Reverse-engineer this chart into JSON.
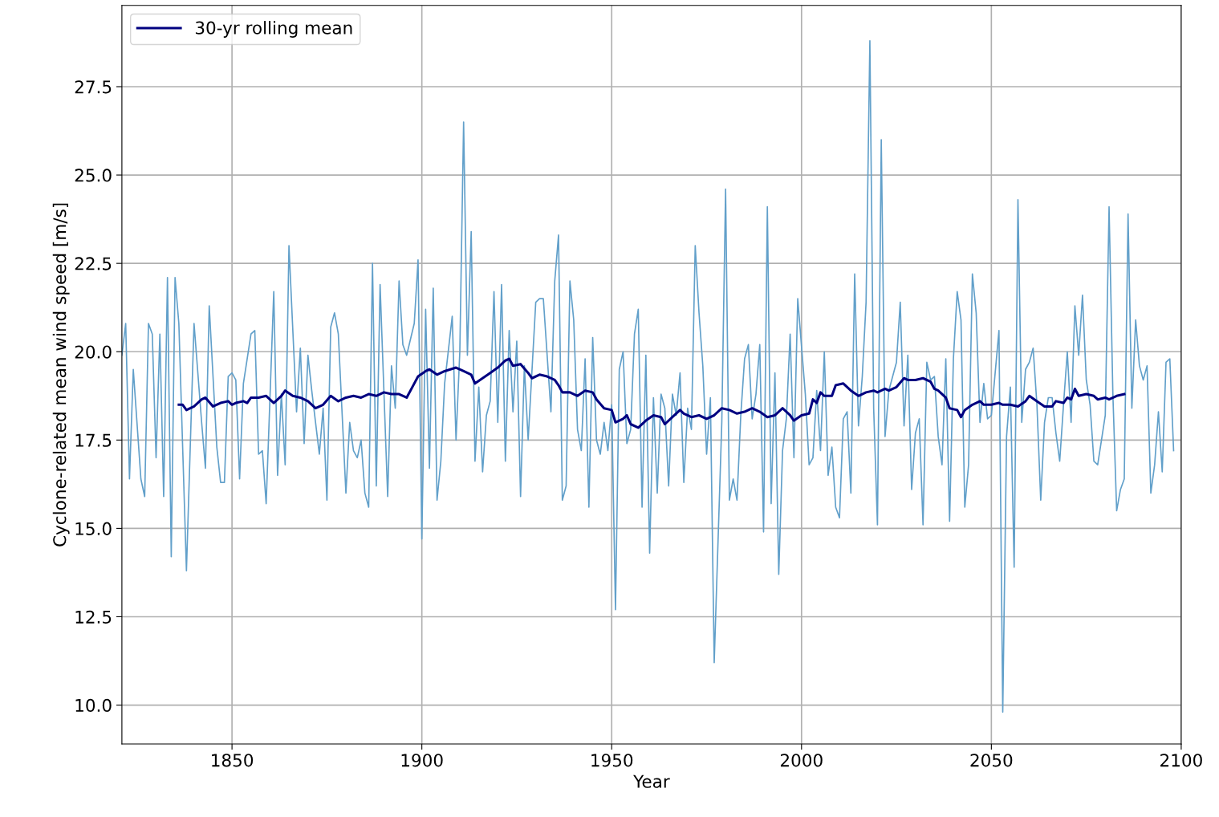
{
  "chart_data": {
    "type": "line",
    "xlabel": "Year",
    "ylabel": "Cyclone-related mean wind speed [m/s]",
    "xlim": [
      1821,
      2100
    ],
    "xticks": [
      1850,
      1900,
      1950,
      2000,
      2050,
      2100
    ],
    "ylim": [
      8.9,
      29.8
    ],
    "yticks": [
      {
        "value": 10,
        "label": "10.0"
      },
      {
        "value": 12.5,
        "label": "12.5"
      },
      {
        "value": 15,
        "label": "15.0"
      },
      {
        "value": 17.5,
        "label": "17.5"
      },
      {
        "value": 20,
        "label": "20.0"
      },
      {
        "value": 22.5,
        "label": "22.5"
      },
      {
        "value": 25,
        "label": "25.0"
      },
      {
        "value": 27.5,
        "label": "27.5"
      }
    ],
    "grid": true,
    "legend": "top left",
    "series": [
      {
        "color": "#62a0ca",
        "x": [
          1821,
          1822,
          1823,
          1824,
          1826,
          1827,
          1828,
          1829,
          1830,
          1831,
          1832,
          1833,
          1834,
          1835,
          1836,
          1838,
          1840,
          1842,
          1843,
          1844,
          1846,
          1847,
          1848,
          1849,
          1850,
          1851,
          1852,
          1853,
          1855,
          1856,
          1857,
          1858,
          1859,
          1861,
          1862,
          1863,
          1864,
          1865,
          1867,
          1868,
          1869,
          1870,
          1871,
          1873,
          1874,
          1875,
          1876,
          1877,
          1878,
          1880,
          1881,
          1882,
          1883,
          1884,
          1885,
          1886,
          1887,
          1888,
          1889,
          1891,
          1892,
          1893,
          1894,
          1895,
          1896,
          1898,
          1899,
          1900,
          1901,
          1902,
          1903,
          1904,
          1905,
          1906,
          1908,
          1909,
          1910,
          1911,
          1912,
          1913,
          1914,
          1915,
          1916,
          1917,
          1918,
          1919,
          1920,
          1921,
          1922,
          1923,
          1924,
          1925,
          1926,
          1927,
          1928,
          1930,
          1931,
          1932,
          1934,
          1935,
          1936,
          1937,
          1938,
          1939,
          1940,
          1941,
          1942,
          1943,
          1944,
          1945,
          1946,
          1947,
          1948,
          1949,
          1950,
          1951,
          1952,
          1953,
          1954,
          1955,
          1956,
          1957,
          1958,
          1959,
          1960,
          1961,
          1962,
          1963,
          1964,
          1965,
          1966,
          1967,
          1968,
          1969,
          1970,
          1971,
          1972,
          1973,
          1974,
          1975,
          1976,
          1977,
          1979,
          1980,
          1981,
          1982,
          1983,
          1984,
          1985,
          1986,
          1987,
          1988,
          1989,
          1990,
          1991,
          1992,
          1993,
          1994,
          1995,
          1996,
          1997,
          1998,
          1999,
          2001,
          2002,
          2003,
          2004,
          2005,
          2006,
          2007,
          2008,
          2009,
          2010,
          2011,
          2012,
          2013,
          2014,
          2015,
          2016,
          2017,
          2018,
          2019,
          2020,
          2021,
          2022,
          2023,
          2024,
          2025,
          2026,
          2027,
          2028,
          2029,
          2030,
          2031,
          2032,
          2033,
          2034,
          2035,
          2036,
          2037,
          2038,
          2039,
          2040,
          2041,
          2042,
          2043,
          2044,
          2045,
          2046,
          2047,
          2048,
          2049,
          2050,
          2051,
          2052,
          2053,
          2054,
          2055,
          2056,
          2057,
          2058,
          2059,
          2060,
          2061,
          2062,
          2063,
          2064,
          2065,
          2066,
          2067,
          2068,
          2069,
          2070,
          2071,
          2072,
          2073,
          2074,
          2075,
          2076,
          2077,
          2078,
          2079,
          2080,
          2081,
          2082,
          2083,
          2084,
          2085,
          2086,
          2087,
          2088,
          2089,
          2090,
          2091,
          2092,
          2093,
          2094,
          2095,
          2096,
          2097,
          2098
        ],
        "values": [
          19.9,
          20.8,
          16.4,
          19.5,
          16.4,
          15.9,
          20.8,
          20.5,
          17.0,
          20.5,
          15.9,
          22.1,
          14.2,
          22.1,
          20.8,
          13.8,
          20.8,
          18.0,
          16.7,
          21.3,
          17.3,
          16.3,
          16.3,
          19.3,
          19.4,
          19.2,
          16.4,
          19.1,
          20.5,
          20.6,
          17.1,
          17.2,
          15.7,
          21.7,
          16.5,
          18.8,
          16.8,
          23.0,
          18.3,
          20.1,
          17.4,
          19.9,
          18.9,
          17.1,
          18.4,
          15.8,
          20.7,
          21.1,
          20.5,
          16.0,
          18.0,
          17.2,
          17.0,
          17.5,
          16.0,
          15.6,
          22.5,
          16.2,
          21.9,
          15.9,
          19.6,
          18.4,
          22.0,
          20.2,
          19.9,
          20.8,
          22.6,
          14.7,
          21.2,
          16.7,
          21.8,
          15.8,
          16.9,
          19.1,
          21.0,
          17.5,
          20.0,
          26.5,
          19.9,
          23.4,
          16.9,
          19.0,
          16.6,
          18.2,
          18.6,
          21.7,
          18.0,
          21.9,
          16.9,
          20.6,
          18.3,
          20.3,
          15.9,
          19.6,
          17.5,
          21.4,
          21.5,
          21.5,
          18.3,
          22.0,
          23.3,
          15.8,
          16.2,
          22.0,
          20.9,
          17.8,
          17.2,
          19.8,
          15.6,
          20.4,
          17.5,
          17.1,
          18.0,
          17.2,
          18.5,
          12.7,
          19.5,
          20.0,
          17.4,
          17.8,
          20.5,
          21.2,
          15.6,
          19.9,
          14.3,
          18.7,
          16.0,
          18.8,
          18.4,
          16.2,
          18.8,
          18.2,
          19.4,
          16.3,
          18.4,
          17.8,
          23.0,
          21.1,
          19.6,
          17.1,
          18.7,
          11.2,
          18.0,
          24.6,
          15.8,
          16.4,
          15.8,
          18.2,
          19.8,
          20.2,
          18.1,
          18.8,
          20.2,
          14.9,
          24.1,
          15.7,
          19.4,
          13.7,
          17.2,
          18.1,
          20.5,
          17.0,
          21.5,
          18.8,
          16.8,
          17.0,
          18.9,
          17.2,
          20.0,
          16.5,
          17.3,
          15.6,
          15.3,
          18.1,
          18.3,
          16.0,
          22.2,
          17.9,
          19.3,
          21.4,
          28.8,
          18.4,
          15.1,
          26.0,
          17.6,
          18.9,
          19.3,
          19.7,
          21.4,
          17.9,
          19.9,
          16.1,
          17.7,
          18.1,
          15.1,
          19.7,
          19.2,
          19.3,
          17.6,
          16.8,
          19.8,
          15.2,
          19.8,
          21.7,
          20.9,
          15.6,
          16.8,
          22.2,
          21.1,
          18.0,
          19.1,
          18.1,
          18.2,
          19.4,
          20.6,
          9.8,
          17.6,
          19.0,
          13.9,
          24.3,
          18.0,
          19.5,
          19.7,
          20.1,
          18.5,
          15.8,
          18.0,
          18.7,
          18.7,
          17.7,
          16.9,
          18.5,
          20.0,
          18.0,
          21.3,
          19.9,
          21.6,
          19.2,
          18.5,
          16.9,
          16.8,
          17.5,
          18.2,
          24.1,
          18.8,
          15.5,
          16.1,
          16.4,
          23.9,
          18.4,
          20.9,
          19.6,
          19.2,
          19.6,
          16.0,
          16.8,
          18.3,
          16.6,
          19.7,
          19.8,
          17.2
        ]
      },
      {
        "name": "30-yr rolling mean",
        "color": "#000080",
        "x": [
          1836,
          1837,
          1838,
          1840,
          1842,
          1843,
          1845,
          1847,
          1849,
          1850,
          1851,
          1853,
          1854,
          1855,
          1857,
          1859,
          1861,
          1863,
          1864,
          1866,
          1868,
          1870,
          1872,
          1874,
          1876,
          1878,
          1880,
          1882,
          1884,
          1886,
          1888,
          1890,
          1892,
          1894,
          1896,
          1898,
          1899,
          1901,
          1902,
          1904,
          1906,
          1909,
          1911,
          1913,
          1914,
          1916,
          1918,
          1920,
          1922,
          1923,
          1924,
          1926,
          1928,
          1929,
          1931,
          1933,
          1935,
          1936,
          1937,
          1939,
          1941,
          1943,
          1945,
          1946,
          1948,
          1950,
          1951,
          1953,
          1954,
          1955,
          1957,
          1959,
          1961,
          1963,
          1964,
          1966,
          1968,
          1969,
          1971,
          1973,
          1975,
          1977,
          1979,
          1981,
          1983,
          1985,
          1987,
          1989,
          1991,
          1993,
          1995,
          1997,
          1998,
          2000,
          2002,
          2003,
          2004,
          2005,
          2006,
          2008,
          2009,
          2011,
          2013,
          2015,
          2017,
          2019,
          2020,
          2022,
          2023,
          2025,
          2027,
          2028,
          2030,
          2032,
          2034,
          2035,
          2036,
          2038,
          2039,
          2041,
          2042,
          2043,
          2045,
          2047,
          2048,
          2050,
          2052,
          2053,
          2055,
          2057,
          2059,
          2060,
          2062,
          2064,
          2066,
          2067,
          2069,
          2070,
          2071,
          2072,
          2073,
          2075,
          2077,
          2078,
          2080,
          2081,
          2083,
          2085
        ],
        "values": [
          18.5,
          18.5,
          18.35,
          18.45,
          18.65,
          18.7,
          18.45,
          18.55,
          18.6,
          18.5,
          18.55,
          18.6,
          18.55,
          18.7,
          18.7,
          18.75,
          18.55,
          18.75,
          18.9,
          18.75,
          18.7,
          18.6,
          18.4,
          18.5,
          18.75,
          18.6,
          18.7,
          18.75,
          18.7,
          18.8,
          18.75,
          18.85,
          18.8,
          18.8,
          18.7,
          19.1,
          19.3,
          19.45,
          19.5,
          19.35,
          19.45,
          19.55,
          19.45,
          19.35,
          19.1,
          19.25,
          19.4,
          19.55,
          19.75,
          19.8,
          19.6,
          19.65,
          19.4,
          19.25,
          19.35,
          19.3,
          19.2,
          19.05,
          18.85,
          18.85,
          18.75,
          18.9,
          18.85,
          18.65,
          18.4,
          18.35,
          18.0,
          18.1,
          18.2,
          17.95,
          17.85,
          18.05,
          18.2,
          18.15,
          17.95,
          18.15,
          18.35,
          18.25,
          18.15,
          18.2,
          18.1,
          18.2,
          18.4,
          18.35,
          18.25,
          18.3,
          18.4,
          18.3,
          18.15,
          18.2,
          18.4,
          18.2,
          18.05,
          18.2,
          18.25,
          18.65,
          18.55,
          18.85,
          18.75,
          18.75,
          19.05,
          19.1,
          18.9,
          18.75,
          18.85,
          18.9,
          18.85,
          18.95,
          18.9,
          19.0,
          19.25,
          19.2,
          19.2,
          19.25,
          19.15,
          18.95,
          18.9,
          18.7,
          18.4,
          18.35,
          18.15,
          18.35,
          18.5,
          18.6,
          18.5,
          18.5,
          18.55,
          18.5,
          18.5,
          18.45,
          18.6,
          18.75,
          18.6,
          18.45,
          18.45,
          18.6,
          18.55,
          18.7,
          18.65,
          18.95,
          18.75,
          18.8,
          18.75,
          18.65,
          18.7,
          18.65,
          18.75,
          18.8
        ]
      }
    ]
  }
}
